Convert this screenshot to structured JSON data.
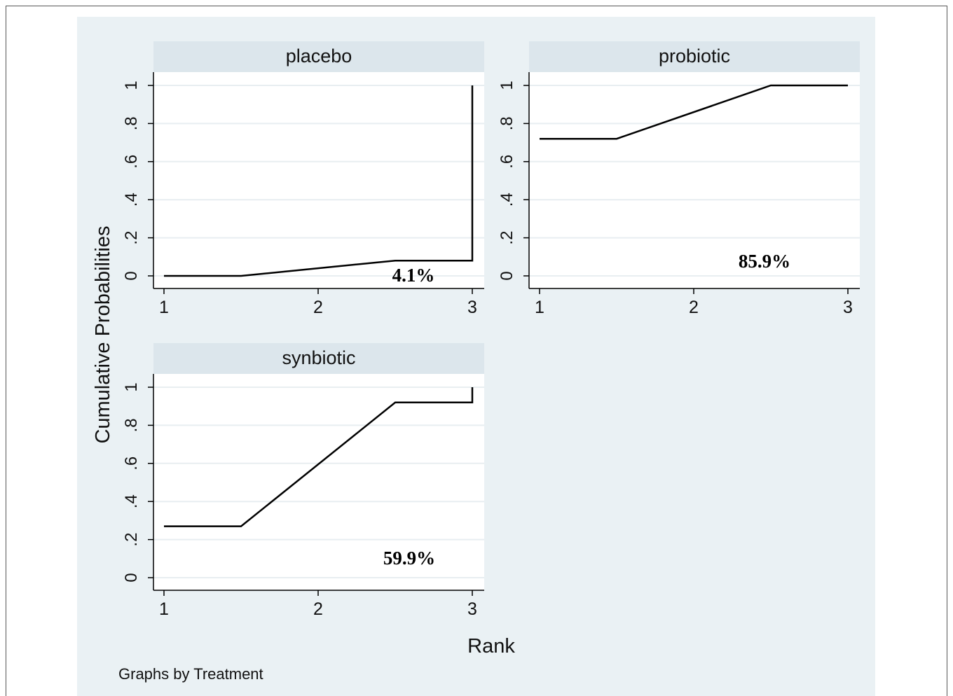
{
  "figure": {
    "ylabel": "Cumulative Probabilities",
    "xlabel": "Rank",
    "note": "Graphs by Treatment",
    "colors": {
      "outer_background": "#eaf1f4",
      "panel_background": "#ffffff",
      "header_background": "#dce6ec",
      "line": "#000000",
      "grid": "#e8eef1"
    }
  },
  "chart_data": [
    {
      "type": "line",
      "title": "placebo",
      "x": [
        1,
        1.5,
        2.5,
        3,
        3
      ],
      "y": [
        0.0,
        0.0,
        0.08,
        0.08,
        1.0
      ],
      "xticks": [
        "1",
        "2",
        "3"
      ],
      "yticks": [
        "0",
        ".2",
        ".4",
        ".6",
        ".8",
        "1"
      ],
      "xlim": [
        1,
        3
      ],
      "ylim": [
        0,
        1
      ],
      "annotation": "4.1%",
      "grid": true
    },
    {
      "type": "line",
      "title": "probiotic",
      "x": [
        1,
        1.5,
        2.5,
        3
      ],
      "y": [
        0.72,
        0.72,
        1.0,
        1.0
      ],
      "xticks": [
        "1",
        "2",
        "3"
      ],
      "yticks": [
        "0",
        ".2",
        ".4",
        ".6",
        ".8",
        "1"
      ],
      "xlim": [
        1,
        3
      ],
      "ylim": [
        0,
        1
      ],
      "annotation": "85.9%",
      "grid": true
    },
    {
      "type": "line",
      "title": "synbiotic",
      "x": [
        1,
        1.5,
        2.5,
        3,
        3
      ],
      "y": [
        0.27,
        0.27,
        0.92,
        0.92,
        1.0
      ],
      "xticks": [
        "1",
        "2",
        "3"
      ],
      "yticks": [
        "0",
        ".2",
        ".4",
        ".6",
        ".8",
        "1"
      ],
      "xlim": [
        1,
        3
      ],
      "ylim": [
        0,
        1
      ],
      "annotation": "59.9%",
      "grid": true
    }
  ]
}
